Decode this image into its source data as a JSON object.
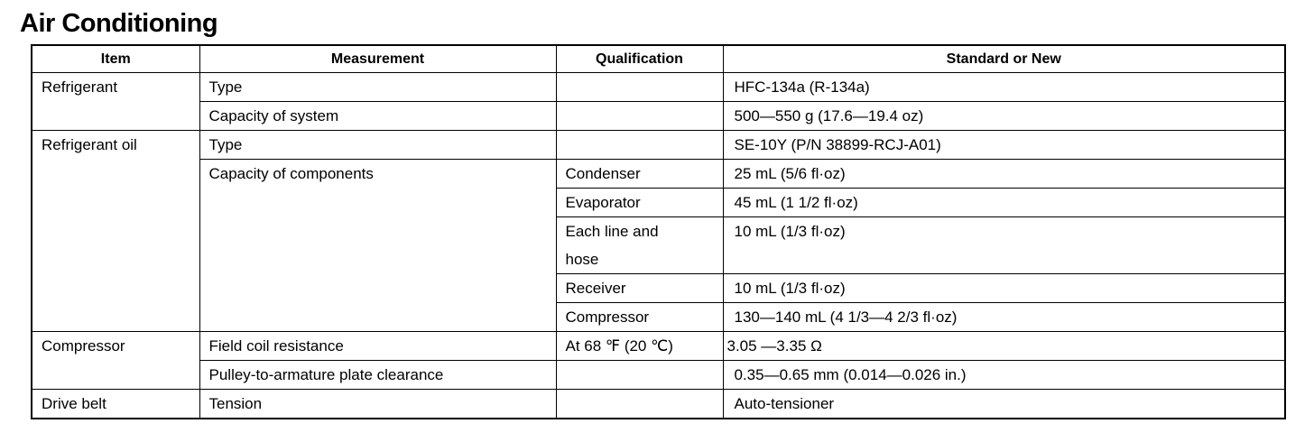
{
  "title": "Air Conditioning",
  "headers": {
    "item": "Item",
    "measurement": "Measurement",
    "qualification": "Qualification",
    "standard": "Standard or New"
  },
  "rows": [
    {
      "item": "Refrigerant",
      "measurement": "Type",
      "qualification": "",
      "standard": "HFC-134a (R-134a)"
    },
    {
      "measurement": "Capacity of system",
      "qualification": "",
      "standard": "500—550 g (17.6—19.4 oz)"
    },
    {
      "item": "Refrigerant oil",
      "measurement": "Type",
      "qualification": "",
      "standard": "SE-10Y (P/N 38899-RCJ-A01)"
    },
    {
      "measurement": "Capacity of components",
      "qualification": "Condenser",
      "standard": "25 mL (5/6 fl·oz)"
    },
    {
      "qualification": "Evaporator",
      "standard": "45 mL (1 1/2 fl·oz)"
    },
    {
      "qualification": "Each line and hose",
      "standard": "10 mL (1/3 fl·oz)"
    },
    {
      "qualification": "Receiver",
      "standard": "10 mL (1/3 fl·oz)"
    },
    {
      "qualification": "Compressor",
      "standard": "130—140 mL (4 1/3—4 2/3 fl·oz)"
    },
    {
      "item": "Compressor",
      "measurement": "Field coil resistance",
      "qualification": "At 68 ℉ (20 ℃)",
      "standard": "3.05 —3.35  Ω"
    },
    {
      "measurement": "Pulley-to-armature plate clearance",
      "qualification": "",
      "standard": "0.35—0.65 mm (0.014—0.026 in.)"
    },
    {
      "item": "Drive belt",
      "measurement": "Tension",
      "qualification": "",
      "standard": "Auto-tensioner"
    }
  ]
}
